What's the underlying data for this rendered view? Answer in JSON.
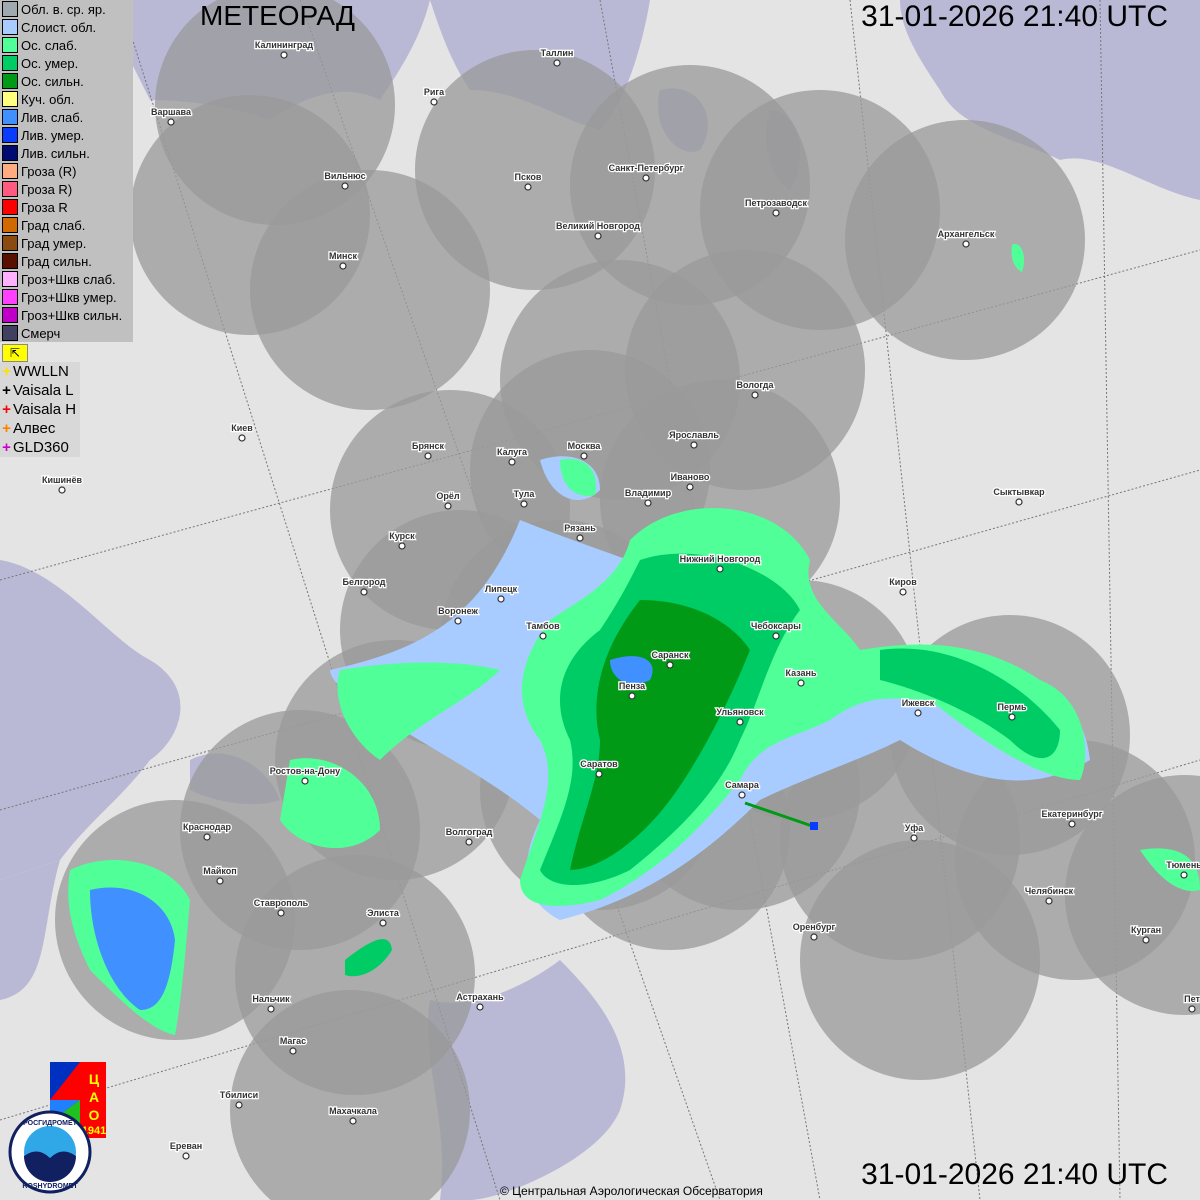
{
  "header": {
    "title": "МЕТЕОРАД",
    "timestamp_top": "31-01-2026  21:40 UTC",
    "timestamp_bottom": "31-01-2026  21:40 UTC"
  },
  "legend": [
    {
      "label": "Обл. в. ср. яр.",
      "color": "#a0a8b0"
    },
    {
      "label": "Слоист. обл.",
      "color": "#a8ccff"
    },
    {
      "label": "Ос. слаб.",
      "color": "#50ff98"
    },
    {
      "label": "Ос. умер.",
      "color": "#00cc66"
    },
    {
      "label": "Ос. сильн.",
      "color": "#009a16"
    },
    {
      "label": "Куч. обл.",
      "color": "#ffff80"
    },
    {
      "label": "Лив. слаб.",
      "color": "#4090ff"
    },
    {
      "label": "Лив. умер.",
      "color": "#0a3cff"
    },
    {
      "label": "Лив. сильн.",
      "color": "#000a70"
    },
    {
      "label": "Гроза (R)",
      "color": "#ffac80"
    },
    {
      "label": "Гроза R)",
      "color": "#ff5a80"
    },
    {
      "label": "Гроза R",
      "color": "#ff0000"
    },
    {
      "label": "Град слаб.",
      "color": "#d06a00"
    },
    {
      "label": "Град умер.",
      "color": "#8a4a10"
    },
    {
      "label": "Град сильн.",
      "color": "#5a1000"
    },
    {
      "label": "Гроз+Шкв слаб.",
      "color": "#ffb0ff"
    },
    {
      "label": "Гроз+Шкв умер.",
      "color": "#ff40ff"
    },
    {
      "label": "Гроз+Шкв сильн.",
      "color": "#c000c8"
    },
    {
      "label": "Смерч",
      "color": "#404060"
    }
  ],
  "flag_icon": "flag-corner-arrow-icon",
  "lightning": [
    {
      "label": "WWLLN",
      "color": "#ffe000"
    },
    {
      "label": "Vaisala L",
      "color": "#000000"
    },
    {
      "label": "Vaisala H",
      "color": "#ff0000"
    },
    {
      "label": "Алвес",
      "color": "#ff8000"
    },
    {
      "label": "GLD360",
      "color": "#d000d0"
    }
  ],
  "cities": [
    "Калининград",
    "Таллин",
    "Рига",
    "Варшава",
    "Санкт-Петербург",
    "Псков",
    "Вильнюс",
    "Петрозаводск",
    "Великий Новгород",
    "Архангельск",
    "Минск",
    "Вологда",
    "Киев",
    "Брянск",
    "Москва",
    "Калуга",
    "Ярославль",
    "Иваново",
    "Кишинёв",
    "Орёл",
    "Тула",
    "Владимир",
    "Сыктывкар",
    "Рязань",
    "Курск",
    "Нижний Новгород",
    "Белгород",
    "Киров",
    "Липецк",
    "Воронеж",
    "Тамбов",
    "Чебоксары",
    "Саранск",
    "Казань",
    "Пенза",
    "Ижевск",
    "Пермь",
    "Ульяновск",
    "Ростов-на-Дону",
    "Саратов",
    "Самара",
    "Екатеринбург",
    "Краснодар",
    "Уфа",
    "Волгоград",
    "Тюмень",
    "Майкоп",
    "Челябинск",
    "Ставрополь",
    "Элиста",
    "Оренбург",
    "Курган",
    "Нальчик",
    "Астрахань",
    "Пет",
    "Магас",
    "Тбилиси",
    "Махачкала",
    "Ереван"
  ],
  "logos": {
    "cao": "ЦАО 1941",
    "roshydromet": "РОСГИДРОМЕТ ROSHYDROMET"
  },
  "copyright": "© Центральная Аэрологическая Обсерватория"
}
